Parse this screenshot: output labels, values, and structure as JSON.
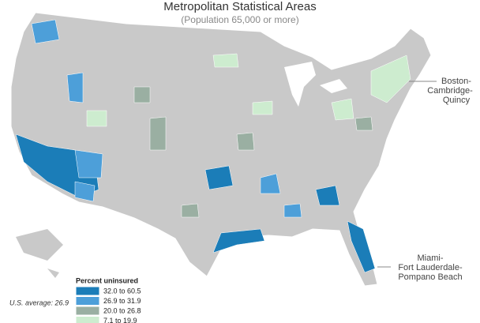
{
  "header": {
    "title": "Metropolitan Statistical Areas",
    "subtitle": "(Population 65,000 or more)"
  },
  "callouts": [
    {
      "lines": [
        "Boston-",
        "Cambridge-",
        "Quincy"
      ]
    },
    {
      "lines": [
        "Miami-",
        "Fort Lauderdale-",
        "Pompano Beach"
      ]
    }
  ],
  "legend": {
    "title": "Percent uninsured",
    "items": [
      {
        "label": "32.0 to 60.5",
        "color": "#1b7db8"
      },
      {
        "label": "26.9 to 31.9",
        "color": "#4d9fd9"
      },
      {
        "label": "20.0 to 26.8",
        "color": "#9aafa2"
      },
      {
        "label": "7.1 to 19.9",
        "color": "#cdeccf"
      }
    ]
  },
  "note": "U.S. average: 26.9"
}
